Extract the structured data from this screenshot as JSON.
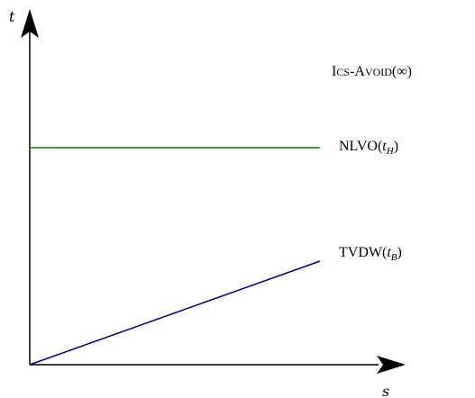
{
  "axes": {
    "y_label": "t",
    "x_label": "s"
  },
  "curves": [
    {
      "id": "ics-avoid",
      "label_parts": [
        "I",
        "CS",
        "-A",
        "VOID",
        "(",
        "∞",
        ")"
      ],
      "color": "none",
      "kind": "label-only"
    },
    {
      "id": "nlvo",
      "label_parts": [
        "NLVO(",
        "t",
        "H",
        ")"
      ],
      "color": "#008000",
      "kind": "horizontal"
    },
    {
      "id": "tvdw",
      "label_parts": [
        "TVDW(",
        "t",
        "B",
        ")"
      ],
      "color": "#000080",
      "kind": "sloped"
    }
  ],
  "colors": {
    "axis": "#000000",
    "nlvo": "#008000",
    "tvdw": "#000080"
  }
}
